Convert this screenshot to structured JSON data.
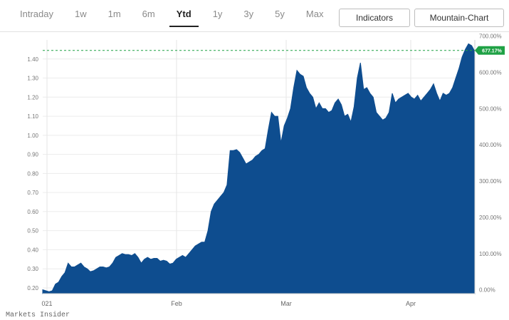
{
  "tabs": [
    {
      "label": "Intraday",
      "active": false
    },
    {
      "label": "1w",
      "active": false
    },
    {
      "label": "1m",
      "active": false
    },
    {
      "label": "6m",
      "active": false
    },
    {
      "label": "Ytd",
      "active": true
    },
    {
      "label": "1y",
      "active": false
    },
    {
      "label": "3y",
      "active": false
    },
    {
      "label": "5y",
      "active": false
    },
    {
      "label": "Max",
      "active": false
    }
  ],
  "buttons": {
    "indicators": "Indicators",
    "chart_type": "Mountain-Chart"
  },
  "footer": {
    "source": "Markets Insider"
  },
  "chart_data": {
    "type": "area",
    "title": "",
    "xlabel": "",
    "ylabel": "",
    "color": "#0e4d8f",
    "x_labels": [
      "021",
      "Feb",
      "Mar",
      "Apr"
    ],
    "left_axis": {
      "ticks": [
        "0.20",
        "0.30",
        "0.40",
        "0.50",
        "0.60",
        "0.70",
        "0.80",
        "0.90",
        "1.00",
        "1.10",
        "1.20",
        "1.30",
        "1.40"
      ],
      "ylim": [
        0.17,
        1.5
      ]
    },
    "right_axis": {
      "ticks": [
        "0.00%",
        "100.00%",
        "200.00%",
        "300.00%",
        "400.00%",
        "500.00%",
        "600.00%",
        "700.00%"
      ]
    },
    "current_value_label": "677.17%",
    "current_value_color": "#1fa145",
    "reference_line_value": 1.445,
    "series": [
      {
        "values": [
          0.19,
          0.185,
          0.18,
          0.185,
          0.22,
          0.23,
          0.26,
          0.28,
          0.33,
          0.31,
          0.31,
          0.32,
          0.33,
          0.31,
          0.3,
          0.285,
          0.29,
          0.3,
          0.31,
          0.31,
          0.305,
          0.31,
          0.33,
          0.36,
          0.37,
          0.38,
          0.375,
          0.375,
          0.37,
          0.38,
          0.36,
          0.33,
          0.35,
          0.36,
          0.35,
          0.355,
          0.355,
          0.34,
          0.345,
          0.34,
          0.325,
          0.33,
          0.35,
          0.36,
          0.37,
          0.36,
          0.38,
          0.4,
          0.42,
          0.43,
          0.44,
          0.44,
          0.5,
          0.6,
          0.64,
          0.66,
          0.68,
          0.7,
          0.74,
          0.92,
          0.92,
          0.925,
          0.91,
          0.88,
          0.85,
          0.86,
          0.87,
          0.89,
          0.9,
          0.92,
          0.93,
          1.03,
          1.12,
          1.1,
          1.1,
          0.96,
          1.05,
          1.09,
          1.14,
          1.25,
          1.34,
          1.32,
          1.31,
          1.25,
          1.22,
          1.2,
          1.14,
          1.17,
          1.14,
          1.14,
          1.12,
          1.13,
          1.17,
          1.19,
          1.16,
          1.1,
          1.11,
          1.07,
          1.15,
          1.3,
          1.38,
          1.24,
          1.25,
          1.22,
          1.2,
          1.12,
          1.1,
          1.08,
          1.09,
          1.12,
          1.22,
          1.17,
          1.19,
          1.2,
          1.21,
          1.22,
          1.2,
          1.19,
          1.21,
          1.18,
          1.2,
          1.22,
          1.24,
          1.27,
          1.22,
          1.18,
          1.22,
          1.21,
          1.22,
          1.25,
          1.3,
          1.35,
          1.41,
          1.45,
          1.48,
          1.47,
          1.44
        ]
      }
    ],
    "grid": true,
    "legend": "none"
  }
}
